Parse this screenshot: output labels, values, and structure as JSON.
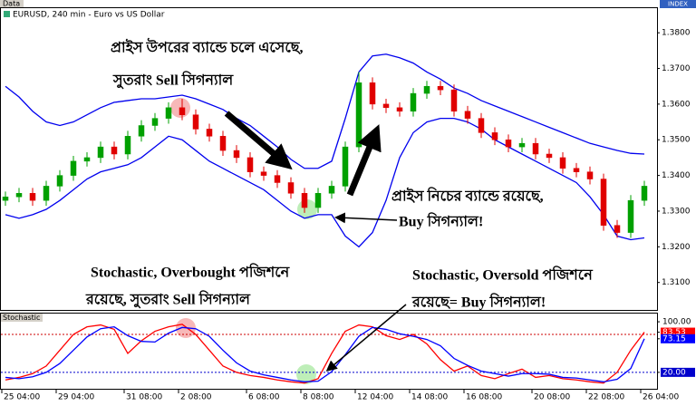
{
  "window_label": "Data",
  "index_label": "INDEX",
  "chart_data": [
    {
      "type": "candlestick",
      "title": "EURUSD, 240 min - Euro vs US Dollar",
      "categories": [
        "25 04:00",
        null,
        null,
        null,
        "29 04:00",
        null,
        null,
        null,
        null,
        "31 08:00",
        null,
        null,
        null,
        "2 08:00",
        null,
        null,
        null,
        null,
        "6 08:00",
        null,
        null,
        null,
        "8 08:00",
        null,
        null,
        null,
        "12 04:00",
        null,
        null,
        null,
        "14 08:00",
        null,
        null,
        null,
        "16 08:00",
        null,
        null,
        null,
        null,
        "20 08:00",
        null,
        null,
        null,
        "22 08:00",
        null,
        null,
        null,
        "26 04:00"
      ],
      "open": [
        1.333,
        1.334,
        1.335,
        1.333,
        1.337,
        1.34,
        1.344,
        1.345,
        1.348,
        1.346,
        1.351,
        1.354,
        1.356,
        1.359,
        1.357,
        1.353,
        1.351,
        1.347,
        1.345,
        1.341,
        1.34,
        1.338,
        1.335,
        1.331,
        1.335,
        1.337,
        1.348,
        1.366,
        1.36,
        1.359,
        1.358,
        1.363,
        1.365,
        1.364,
        1.358,
        1.356,
        1.352,
        1.35,
        1.348,
        1.349,
        1.346,
        1.345,
        1.342,
        1.341,
        1.339,
        1.326,
        1.324,
        1.333
      ],
      "high": [
        1.3355,
        1.3365,
        1.3365,
        1.3385,
        1.3415,
        1.3455,
        1.3465,
        1.3495,
        1.3495,
        1.3525,
        1.3555,
        1.3575,
        1.3605,
        1.3615,
        1.3585,
        1.3545,
        1.3525,
        1.3485,
        1.3465,
        1.3425,
        1.3415,
        1.3395,
        1.3365,
        1.3365,
        1.3385,
        1.3495,
        1.369,
        1.3675,
        1.3615,
        1.3605,
        1.3645,
        1.3665,
        1.3665,
        1.3655,
        1.3595,
        1.3575,
        1.3535,
        1.3515,
        1.3505,
        1.3505,
        1.3475,
        1.3465,
        1.3435,
        1.3425,
        1.3405,
        1.3275,
        1.3345,
        1.3385
      ],
      "low": [
        1.3315,
        1.3325,
        1.3315,
        1.3315,
        1.3355,
        1.3385,
        1.3425,
        1.3435,
        1.3445,
        1.3445,
        1.3495,
        1.3525,
        1.3545,
        1.3555,
        1.3515,
        1.3495,
        1.3455,
        1.3435,
        1.3395,
        1.3385,
        1.3365,
        1.3335,
        1.3295,
        1.3295,
        1.3335,
        1.3355,
        1.3465,
        1.3585,
        1.3575,
        1.3565,
        1.3565,
        1.3615,
        1.3625,
        1.3565,
        1.3545,
        1.3505,
        1.3485,
        1.3465,
        1.3465,
        1.3445,
        1.3435,
        1.3405,
        1.3395,
        1.3375,
        1.3245,
        1.3225,
        1.3225,
        1.3315
      ],
      "close": [
        1.334,
        1.335,
        1.333,
        1.337,
        1.34,
        1.344,
        1.345,
        1.348,
        1.346,
        1.351,
        1.354,
        1.356,
        1.359,
        1.357,
        1.353,
        1.351,
        1.347,
        1.345,
        1.341,
        1.34,
        1.338,
        1.335,
        1.331,
        1.335,
        1.337,
        1.348,
        1.366,
        1.36,
        1.359,
        1.358,
        1.363,
        1.365,
        1.364,
        1.358,
        1.356,
        1.352,
        1.35,
        1.348,
        1.349,
        1.346,
        1.345,
        1.342,
        1.341,
        1.339,
        1.326,
        1.324,
        1.333,
        1.337
      ],
      "up_color": "#00a000",
      "down_color": "#e00000",
      "series": [
        {
          "color": "#0000ee",
          "values": [
            1.365,
            1.362,
            1.358,
            1.355,
            1.354,
            1.355,
            1.357,
            1.359,
            1.3605,
            1.361,
            1.3615,
            1.3615,
            1.362,
            1.3625,
            1.3615,
            1.36,
            1.3585,
            1.356,
            1.354,
            1.351,
            1.348,
            1.3445,
            1.342,
            1.342,
            1.344,
            1.356,
            1.369,
            1.3735,
            1.374,
            1.373,
            1.3715,
            1.369,
            1.367,
            1.3645,
            1.363,
            1.361,
            1.3595,
            1.358,
            1.3565,
            1.355,
            1.3535,
            1.352,
            1.3505,
            1.349,
            1.348,
            1.347,
            1.3462,
            1.346
          ]
        },
        {
          "color": "#0000ee",
          "values": [
            1.329,
            1.328,
            1.329,
            1.3305,
            1.333,
            1.336,
            1.339,
            1.341,
            1.342,
            1.343,
            1.345,
            1.348,
            1.351,
            1.35,
            1.347,
            1.344,
            1.342,
            1.34,
            1.338,
            1.336,
            1.333,
            1.33,
            1.328,
            1.329,
            1.329,
            1.323,
            1.32,
            1.324,
            1.333,
            1.345,
            1.352,
            1.355,
            1.356,
            1.356,
            1.355,
            1.353,
            1.35,
            1.348,
            1.346,
            1.344,
            1.342,
            1.34,
            1.338,
            1.334,
            1.329,
            1.323,
            1.322,
            1.3225
          ]
        }
      ],
      "ylim": [
        1.3023,
        1.3869
      ],
      "yticks": [
        {
          "value": 1.31,
          "label": "1.3100"
        },
        {
          "value": 1.32,
          "label": "1.3200"
        },
        {
          "value": 1.33,
          "label": "1.3300"
        },
        {
          "value": 1.34,
          "label": "1.3400"
        },
        {
          "value": 1.35,
          "label": "1.3500"
        },
        {
          "value": 1.36,
          "label": "1.3600"
        },
        {
          "value": 1.37,
          "label": "1.3700"
        },
        {
          "value": 1.38,
          "label": "1.3800"
        }
      ],
      "annotations": [
        "প্রাইস উপরের ব্যান্ডে চলে এসেছে,",
        "সুতরাং Sell সিগন্যাল",
        "প্রাইস নিচের ব্যান্ডে রয়েছে,",
        "Buy সিগন্যাল!",
        "Stochastic, Overbought পজিশনে",
        "রয়েছে, সুতরাং Sell সিগন্যাল",
        "Stochastic, Oversold পজিশনে",
        "রয়েছে= Buy সিগন্যাল!"
      ]
    },
    {
      "type": "line",
      "title": "Stochastic",
      "series": [
        {
          "color": "#ff0000",
          "values": [
            8,
            12,
            18,
            30,
            55,
            80,
            92,
            95,
            88,
            50,
            70,
            85,
            92,
            96,
            80,
            55,
            30,
            20,
            15,
            12,
            8,
            5,
            3,
            10,
            50,
            85,
            95,
            92,
            78,
            72,
            80,
            65,
            40,
            22,
            30,
            15,
            10,
            18,
            25,
            12,
            15,
            10,
            8,
            5,
            3,
            20,
            55,
            83.53
          ]
        },
        {
          "color": "#0000ff",
          "values": [
            12,
            10,
            13,
            20,
            34,
            55,
            76,
            89,
            92,
            78,
            69,
            68,
            82,
            91,
            89,
            77,
            55,
            35,
            22,
            16,
            12,
            8,
            5,
            6,
            21,
            48,
            77,
            91,
            88,
            81,
            77,
            72,
            62,
            42,
            31,
            22,
            18,
            14,
            18,
            18,
            17,
            12,
            11,
            8,
            5,
            9,
            26,
            73.15
          ]
        }
      ],
      "levels": [
        {
          "value": 80,
          "color": "#cc0000"
        },
        {
          "value": 20,
          "color": "#0000cc"
        }
      ],
      "ylim": [
        -6,
        113
      ],
      "yticks": [
        {
          "value": 100,
          "label": "100.00"
        },
        83.53,
        73.15,
        {
          "value": 20,
          "label": "20.00"
        }
      ]
    }
  ]
}
